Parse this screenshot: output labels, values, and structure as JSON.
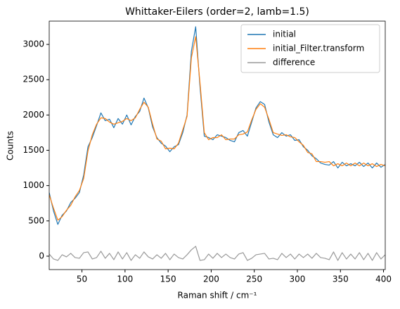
{
  "chart_data": {
    "type": "line",
    "title": "Whittaker-Eilers (order=2, lamb=1.5)",
    "xlabel": "Raman shift / cm⁻¹",
    "ylabel": "Counts",
    "x": [
      12,
      17,
      22,
      27,
      32,
      37,
      42,
      47,
      52,
      57,
      62,
      67,
      72,
      77,
      82,
      87,
      92,
      97,
      102,
      107,
      112,
      117,
      122,
      127,
      132,
      137,
      142,
      147,
      152,
      157,
      162,
      167,
      172,
      177,
      182,
      187,
      192,
      197,
      202,
      207,
      212,
      217,
      222,
      227,
      232,
      237,
      242,
      247,
      252,
      257,
      262,
      267,
      272,
      277,
      282,
      287,
      292,
      297,
      302,
      307,
      312,
      317,
      322,
      327,
      332,
      337,
      342,
      347,
      352,
      357,
      362,
      367,
      372,
      377,
      382,
      387,
      392,
      397,
      402
    ],
    "series": [
      {
        "name": "initial",
        "color": "#1f77b4",
        "values": [
          900,
          640,
          450,
          580,
          640,
          760,
          820,
          900,
          1150,
          1550,
          1680,
          1850,
          2030,
          1920,
          1940,
          1820,
          1950,
          1870,
          2000,
          1860,
          1980,
          2050,
          2240,
          2100,
          1830,
          1680,
          1600,
          1560,
          1480,
          1550,
          1580,
          1750,
          2000,
          2900,
          3250,
          2400,
          1700,
          1680,
          1650,
          1720,
          1700,
          1680,
          1640,
          1620,
          1750,
          1780,
          1700,
          1900,
          2100,
          2190,
          2150,
          1900,
          1720,
          1680,
          1750,
          1700,
          1720,
          1640,
          1650,
          1550,
          1500,
          1420,
          1380,
          1320,
          1300,
          1290,
          1340,
          1250,
          1330,
          1280,
          1310,
          1280,
          1330,
          1270,
          1320,
          1250,
          1320,
          1260,
          1300
        ]
      },
      {
        "name": "initial_Filter.transform",
        "color": "#ff7f0e",
        "values": [
          870,
          680,
          510,
          560,
          650,
          720,
          840,
          930,
          1100,
          1490,
          1720,
          1870,
          1960,
          1950,
          1900,
          1870,
          1890,
          1910,
          1950,
          1920,
          1960,
          2080,
          2180,
          2110,
          1870,
          1660,
          1630,
          1520,
          1530,
          1520,
          1600,
          1790,
          1980,
          2810,
          3110,
          2460,
          1750,
          1650,
          1680,
          1680,
          1720,
          1650,
          1660,
          1660,
          1720,
          1730,
          1760,
          1930,
          2080,
          2160,
          2110,
          1940,
          1750,
          1730,
          1710,
          1720,
          1690,
          1680,
          1620,
          1570,
          1470,
          1450,
          1340,
          1340,
          1330,
          1340,
          1280,
          1310,
          1280,
          1320,
          1280,
          1320,
          1280,
          1320,
          1280,
          1310,
          1270,
          1300,
          1280
        ]
      },
      {
        "name": "difference",
        "color": "#999999",
        "values": [
          30,
          -40,
          -60,
          20,
          -10,
          40,
          -20,
          -30,
          50,
          60,
          -40,
          -20,
          70,
          -30,
          40,
          -50,
          60,
          -40,
          50,
          -60,
          20,
          -30,
          60,
          -10,
          -40,
          20,
          -30,
          40,
          -50,
          30,
          -20,
          -40,
          20,
          90,
          140,
          -60,
          -50,
          30,
          -30,
          40,
          -20,
          30,
          -20,
          -40,
          30,
          50,
          -60,
          -30,
          20,
          30,
          40,
          -40,
          -30,
          -50,
          40,
          -20,
          30,
          -40,
          30,
          -20,
          30,
          -30,
          40,
          -20,
          -30,
          -50,
          60,
          -60,
          50,
          -40,
          30,
          -40,
          50,
          -50,
          40,
          -60,
          50,
          -40,
          20
        ]
      }
    ],
    "xlim": [
      12,
      402
    ],
    "ylim": [
      -190,
      3330
    ],
    "xticks": [
      50,
      100,
      150,
      200,
      250,
      300,
      350,
      400
    ],
    "yticks": [
      0,
      500,
      1000,
      1500,
      2000,
      2500,
      3000
    ],
    "legend": "upper right",
    "grid": false
  }
}
